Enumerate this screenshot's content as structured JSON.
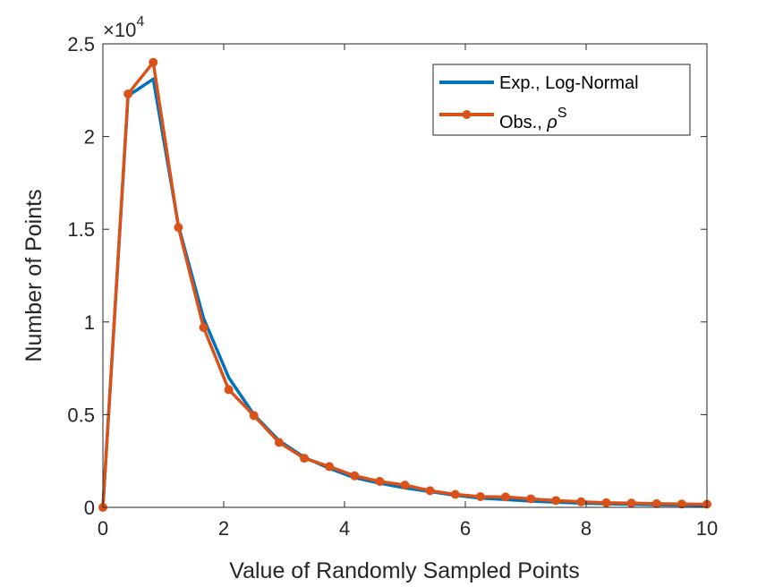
{
  "chart_data": {
    "type": "line",
    "title": "",
    "xlabel": "Value of Randomly Sampled Points",
    "ylabel": "Number of Points",
    "xlim": [
      0,
      10
    ],
    "ylim": [
      0,
      25000
    ],
    "xticks": [
      0,
      2,
      4,
      6,
      8,
      10
    ],
    "xtick_labels": [
      "0",
      "2",
      "4",
      "6",
      "8",
      "10"
    ],
    "yticks": [
      0,
      5000,
      10000,
      15000,
      20000,
      25000
    ],
    "ytick_labels": [
      "0",
      "0.5",
      "1",
      "1.5",
      "2",
      "2.5"
    ],
    "y_exponent": {
      "base": "×10",
      "power": "4"
    },
    "grid": false,
    "legend_position": "top-right",
    "x": [
      0,
      0.4167,
      0.8333,
      1.25,
      1.6667,
      2.0833,
      2.5,
      2.9167,
      3.3333,
      3.75,
      4.1667,
      4.5833,
      5.0,
      5.4167,
      5.8333,
      6.25,
      6.6667,
      7.0833,
      7.5,
      7.9167,
      8.3333,
      8.75,
      9.1667,
      9.5833,
      10.0
    ],
    "series": [
      {
        "name": "Exp., Log-Normal",
        "color": "#0072BD",
        "marker": "none",
        "values": [
          0,
          22200,
          23100,
          15200,
          10200,
          7000,
          5000,
          3600,
          2700,
          2100,
          1600,
          1300,
          1050,
          850,
          650,
          500,
          420,
          340,
          280,
          230,
          190,
          165,
          140,
          120,
          100
        ]
      },
      {
        "name": "Obs., ",
        "name_symbol": "ρ",
        "name_superscript": "S",
        "color": "#D95319",
        "marker": "circle",
        "values": [
          0,
          22300,
          24000,
          15100,
          9700,
          6350,
          4950,
          3500,
          2650,
          2200,
          1700,
          1400,
          1200,
          900,
          700,
          580,
          560,
          460,
          370,
          300,
          250,
          230,
          200,
          180,
          170
        ]
      }
    ]
  }
}
